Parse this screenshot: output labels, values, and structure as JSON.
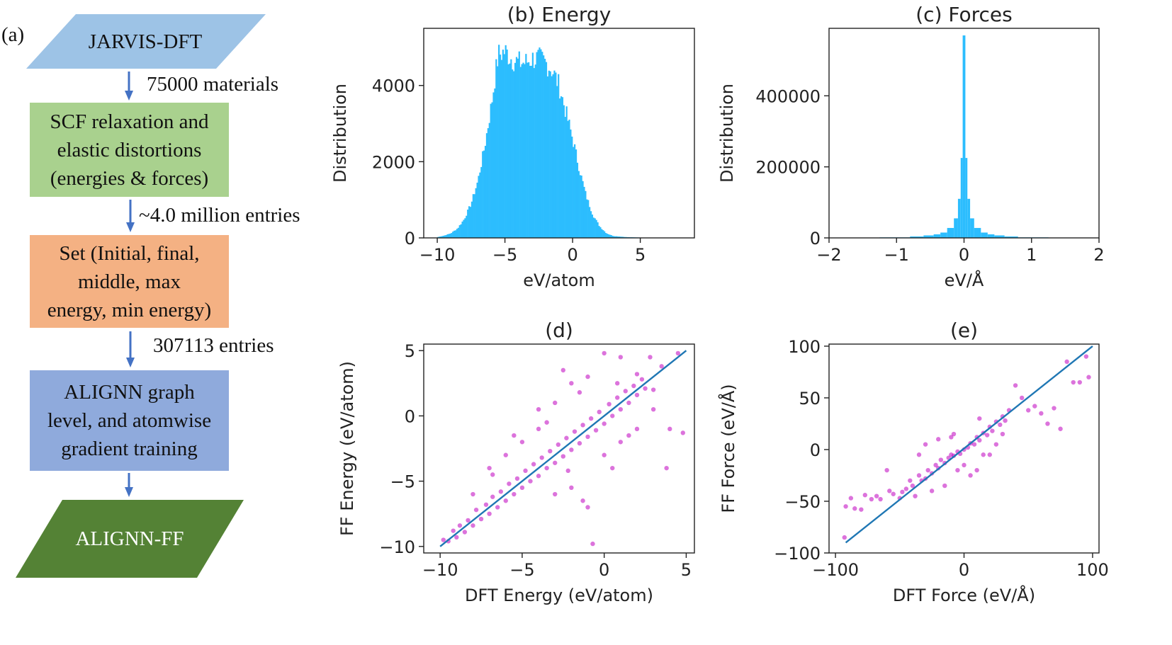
{
  "flowchart": {
    "panel_label": "(a)",
    "nodes": [
      {
        "id": "jarvis",
        "text": "JARVIS-DFT",
        "shape": "parallelogram",
        "color": "#9dc3e6"
      },
      {
        "id": "scf",
        "text": "SCF relaxation and elastic distortions (energies & forces)",
        "lines": [
          "SCF relaxation and",
          "elastic distortions",
          "(energies & forces)"
        ],
        "shape": "rect",
        "color": "#a9d18e"
      },
      {
        "id": "set",
        "text": "Set (Initial, final, middle, max energy, min energy)",
        "lines": [
          "Set (Initial, final,",
          "middle, max",
          "energy, min energy)"
        ],
        "shape": "rect",
        "color": "#f4b183"
      },
      {
        "id": "alignn",
        "text": "ALIGNN graph level, and atomwise gradient training",
        "lines": [
          "ALIGNN graph",
          "level, and atomwise",
          "gradient training"
        ],
        "shape": "rect",
        "color": "#8faadc"
      },
      {
        "id": "ff",
        "text": "ALIGNN-FF",
        "shape": "parallelogram",
        "color": "#548235"
      }
    ],
    "edges": [
      {
        "label": "75000 materials"
      },
      {
        "label": "~4.0 million entries"
      },
      {
        "label": "307113 entries"
      },
      {
        "label": ""
      }
    ],
    "arrow_color": "#4472c4"
  },
  "chart_data": [
    {
      "id": "b",
      "type": "bar",
      "title": "(b) Energy",
      "xlabel": "eV/atom",
      "ylabel": "Distribution",
      "xlim": [
        -11,
        9
      ],
      "ylim": [
        0,
        5500
      ],
      "xticks": [
        -10,
        -5,
        0,
        5
      ],
      "xtick_labels": [
        "−10",
        "−5",
        "0",
        "5"
      ],
      "yticks": [
        0,
        2000,
        4000
      ],
      "ytick_labels": [
        "0",
        "2000",
        "4000"
      ],
      "color": "#2cbdfe",
      "bin_width": 0.1,
      "envelope_x": [
        -10,
        -9.5,
        -9,
        -8.5,
        -8,
        -7.5,
        -7,
        -6.5,
        -6,
        -5.7,
        -5.5,
        -5,
        -4.5,
        -4,
        -3.5,
        -3,
        -2.5,
        -2,
        -1.5,
        -1,
        -0.5,
        0,
        0.5,
        1,
        1.5,
        2,
        2.5,
        3,
        4,
        5,
        8
      ],
      "envelope_y": [
        20,
        60,
        120,
        250,
        500,
        900,
        1500,
        2400,
        3500,
        4300,
        4800,
        4900,
        4700,
        4600,
        4600,
        4700,
        4700,
        4600,
        4400,
        4000,
        3300,
        2600,
        1800,
        1100,
        600,
        300,
        120,
        50,
        20,
        10,
        0
      ]
    },
    {
      "id": "c",
      "type": "bar",
      "title": "(c) Forces",
      "xlabel": "eV/Å",
      "ylabel": "Distribution",
      "xlim": [
        -2,
        2
      ],
      "ylim": [
        0,
        590000
      ],
      "xticks": [
        -2,
        -1,
        0,
        1,
        2
      ],
      "xtick_labels": [
        "−2",
        "−1",
        "0",
        "1",
        "2"
      ],
      "yticks": [
        0,
        200000,
        400000
      ],
      "ytick_labels": [
        "0",
        "200000",
        "400000"
      ],
      "color": "#2cbdfe",
      "bins": [
        {
          "x0": -1.25,
          "x1": -0.8,
          "v": 1500
        },
        {
          "x0": -0.8,
          "x1": -0.6,
          "v": 4000
        },
        {
          "x0": -0.6,
          "x1": -0.45,
          "v": 7000
        },
        {
          "x0": -0.45,
          "x1": -0.35,
          "v": 10000
        },
        {
          "x0": -0.35,
          "x1": -0.25,
          "v": 15000
        },
        {
          "x0": -0.25,
          "x1": -0.15,
          "v": 28000
        },
        {
          "x0": -0.15,
          "x1": -0.09,
          "v": 55000
        },
        {
          "x0": -0.09,
          "x1": -0.05,
          "v": 110000
        },
        {
          "x0": -0.05,
          "x1": -0.02,
          "v": 225000
        },
        {
          "x0": -0.02,
          "x1": 0.02,
          "v": 570000
        },
        {
          "x0": 0.02,
          "x1": 0.05,
          "v": 225000
        },
        {
          "x0": 0.05,
          "x1": 0.09,
          "v": 110000
        },
        {
          "x0": 0.09,
          "x1": 0.15,
          "v": 55000
        },
        {
          "x0": 0.15,
          "x1": 0.25,
          "v": 28000
        },
        {
          "x0": 0.25,
          "x1": 0.35,
          "v": 15000
        },
        {
          "x0": 0.35,
          "x1": 0.45,
          "v": 10000
        },
        {
          "x0": 0.45,
          "x1": 0.6,
          "v": 7000
        },
        {
          "x0": 0.6,
          "x1": 0.8,
          "v": 4000
        },
        {
          "x0": 0.8,
          "x1": 1.25,
          "v": 1500
        }
      ]
    },
    {
      "id": "d",
      "type": "scatter",
      "title": "(d)",
      "xlabel": "DFT Energy (eV/atom)",
      "ylabel": "FF Energy (eV/atom)",
      "xlim": [
        -11,
        5.5
      ],
      "ylim": [
        -10.5,
        5.5
      ],
      "xticks": [
        -10,
        -5,
        0,
        5
      ],
      "xtick_labels": [
        "−10",
        "−5",
        "0",
        "5"
      ],
      "yticks": [
        -10,
        -5,
        0,
        5
      ],
      "ytick_labels": [
        "−10",
        "−5",
        "0",
        "5"
      ],
      "point_color": "#bf00bf",
      "line_color": "#1f77b4",
      "fit_line": [
        [
          -10,
          -10
        ],
        [
          5,
          5
        ]
      ],
      "points": [
        [
          -9.8,
          -9.5
        ],
        [
          -9.5,
          -9.6
        ],
        [
          -9.2,
          -8.8
        ],
        [
          -9,
          -9.3
        ],
        [
          -8.8,
          -8.4
        ],
        [
          -8.5,
          -8.9
        ],
        [
          -8.3,
          -8
        ],
        [
          -8,
          -8.4
        ],
        [
          -7.8,
          -7.2
        ],
        [
          -7.5,
          -7.9
        ],
        [
          -7.2,
          -6.8
        ],
        [
          -7,
          -7.5
        ],
        [
          -6.8,
          -6.2
        ],
        [
          -6.5,
          -7
        ],
        [
          -6.3,
          -5.8
        ],
        [
          -6,
          -6.5
        ],
        [
          -5.8,
          -5.2
        ],
        [
          -5.5,
          -6
        ],
        [
          -5.3,
          -4.8
        ],
        [
          -5,
          -5.5
        ],
        [
          -4.8,
          -4.2
        ],
        [
          -4.5,
          -5
        ],
        [
          -4.3,
          -3.7
        ],
        [
          -4,
          -4.6
        ],
        [
          -3.8,
          -3.2
        ],
        [
          -3.5,
          -4
        ],
        [
          -3.3,
          -2.7
        ],
        [
          -3,
          -3.6
        ],
        [
          -2.8,
          -2.2
        ],
        [
          -2.5,
          -3.1
        ],
        [
          -2.3,
          -1.7
        ],
        [
          -2,
          -2.6
        ],
        [
          -1.8,
          -1.2
        ],
        [
          -1.5,
          -2.1
        ],
        [
          -1.3,
          -0.7
        ],
        [
          -1,
          -1.6
        ],
        [
          -0.8,
          -0.2
        ],
        [
          -0.5,
          -1.1
        ],
        [
          -0.3,
          0.3
        ],
        [
          0,
          -0.6
        ],
        [
          0.3,
          0.9
        ],
        [
          0.5,
          0
        ],
        [
          0.8,
          1.4
        ],
        [
          1,
          0.5
        ],
        [
          1.3,
          1.9
        ],
        [
          1.5,
          1
        ],
        [
          1.8,
          2.3
        ],
        [
          2,
          1.6
        ],
        [
          2.3,
          2.8
        ],
        [
          2.5,
          2.1
        ],
        [
          -6,
          -3
        ],
        [
          -5,
          -2
        ],
        [
          -4,
          -1
        ],
        [
          -3,
          1
        ],
        [
          -2,
          2.5
        ],
        [
          -1,
          3
        ],
        [
          0,
          4.8
        ],
        [
          1,
          4.5
        ],
        [
          -7,
          -4
        ],
        [
          -3,
          -6
        ],
        [
          -2,
          -5.5
        ],
        [
          0,
          -3
        ],
        [
          1,
          -2
        ],
        [
          2,
          -1
        ],
        [
          3,
          0.5
        ],
        [
          4,
          -1
        ],
        [
          4.5,
          4.8
        ],
        [
          4.8,
          -1.3
        ],
        [
          -1.3,
          -6.5
        ],
        [
          -1,
          -7
        ],
        [
          0.5,
          -4
        ],
        [
          -0.7,
          -9.8
        ],
        [
          -4,
          0.5
        ],
        [
          -5.5,
          -1.5
        ],
        [
          -2.5,
          3.5
        ],
        [
          3.8,
          -4
        ],
        [
          2.8,
          4.5
        ],
        [
          -6.8,
          -4.5
        ],
        [
          -1.5,
          1.8
        ],
        [
          1.5,
          -1.5
        ],
        [
          -3.5,
          -0.5
        ],
        [
          0.8,
          2.5
        ],
        [
          2,
          3.2
        ],
        [
          -8,
          -6
        ],
        [
          -2.2,
          -4.2
        ],
        [
          3,
          2
        ],
        [
          3.5,
          3.8
        ]
      ]
    },
    {
      "id": "e",
      "type": "scatter",
      "title": "(e)",
      "xlabel": "DFT Force (eV/Å)",
      "ylabel": "FF Force (eV/Å)",
      "xlim": [
        -105,
        105
      ],
      "ylim": [
        -100,
        102
      ],
      "xticks": [
        -100,
        0,
        100
      ],
      "xtick_labels": [
        "−100",
        "0",
        "100"
      ],
      "yticks": [
        -100,
        -50,
        0,
        50,
        100
      ],
      "ytick_labels": [
        "−100",
        "−50",
        "0",
        "50",
        "100"
      ],
      "point_color": "#bf00bf",
      "line_color": "#1f77b4",
      "fit_line": [
        [
          -92,
          -90
        ],
        [
          100,
          100
        ]
      ],
      "points": [
        [
          -93,
          -85
        ],
        [
          -92,
          -55
        ],
        [
          -88,
          -47
        ],
        [
          -85,
          -57
        ],
        [
          -80,
          -58
        ],
        [
          -77,
          -44
        ],
        [
          -72,
          -48
        ],
        [
          -68,
          -45
        ],
        [
          -65,
          -48
        ],
        [
          -60,
          -20
        ],
        [
          -58,
          -40
        ],
        [
          -55,
          -43
        ],
        [
          -50,
          -47
        ],
        [
          -48,
          -41
        ],
        [
          -45,
          -38
        ],
        [
          -42,
          -30
        ],
        [
          -40,
          -35
        ],
        [
          -38,
          -45
        ],
        [
          -35,
          -25
        ],
        [
          -33,
          -30
        ],
        [
          -30,
          -28
        ],
        [
          -28,
          -20
        ],
        [
          -25,
          -23
        ],
        [
          -22,
          -15
        ],
        [
          -20,
          -18
        ],
        [
          -18,
          -10
        ],
        [
          -15,
          -13
        ],
        [
          -12,
          -8
        ],
        [
          -10,
          -5
        ],
        [
          -8,
          -6
        ],
        [
          -5,
          -2
        ],
        [
          -3,
          -4
        ],
        [
          0,
          0
        ],
        [
          3,
          2
        ],
        [
          5,
          6
        ],
        [
          8,
          5
        ],
        [
          10,
          12
        ],
        [
          12,
          9
        ],
        [
          15,
          16
        ],
        [
          18,
          14
        ],
        [
          20,
          22
        ],
        [
          22,
          18
        ],
        [
          25,
          27
        ],
        [
          28,
          24
        ],
        [
          30,
          32
        ],
        [
          32,
          28
        ],
        [
          35,
          38
        ],
        [
          -30,
          5
        ],
        [
          -20,
          10
        ],
        [
          -10,
          12
        ],
        [
          -5,
          -20
        ],
        [
          5,
          -25
        ],
        [
          10,
          -20
        ],
        [
          20,
          -5
        ],
        [
          25,
          5
        ],
        [
          30,
          15
        ],
        [
          -35,
          -5
        ],
        [
          45,
          50
        ],
        [
          50,
          38
        ],
        [
          55,
          42
        ],
        [
          60,
          35
        ],
        [
          65,
          25
        ],
        [
          70,
          40
        ],
        [
          75,
          20
        ],
        [
          80,
          85
        ],
        [
          85,
          65
        ],
        [
          90,
          65
        ],
        [
          95,
          90
        ],
        [
          97,
          70
        ],
        [
          40,
          62
        ],
        [
          15,
          -5
        ],
        [
          -15,
          -35
        ],
        [
          -25,
          -40
        ],
        [
          0,
          -15
        ],
        [
          -8,
          15
        ],
        [
          12,
          30
        ]
      ]
    }
  ]
}
